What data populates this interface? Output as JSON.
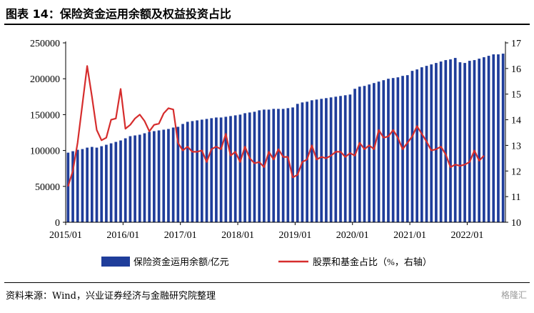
{
  "title": "图表 14：保险资金运用余额及权益投资占比",
  "source": "资料来源：Wind，兴业证券经济与金融研究院整理",
  "watermark": "格隆汇",
  "colors": {
    "bar": "#1f3d9a",
    "line": "#d62d2d"
  },
  "chart_data": {
    "type": "bar",
    "x_tick_labels": [
      "2015/01",
      "2016/01",
      "2017/01",
      "2018/01",
      "2019/01",
      "2020/01",
      "2021/01",
      "2022/01"
    ],
    "y_left": {
      "ticks": [
        0,
        50000,
        100000,
        150000,
        200000,
        250000
      ],
      "tick_labels": [
        "0",
        "50000",
        "100000",
        "150000",
        "200000",
        "250000"
      ],
      "range": [
        0,
        250000
      ]
    },
    "y_right": {
      "ticks": [
        10,
        11,
        12,
        13,
        14,
        15,
        16,
        17
      ],
      "tick_labels": [
        "10",
        "11",
        "12",
        "13",
        "14",
        "15",
        "16",
        "17"
      ],
      "range": [
        10,
        17
      ]
    },
    "legend_position": "bottom",
    "series": [
      {
        "name": "保险资金运用余额/亿元",
        "type": "bar",
        "axis": "left",
        "x_start": "2015/01",
        "frequency": "monthly",
        "values": [
          97000,
          99000,
          101000,
          102000,
          104000,
          105000,
          104000,
          106000,
          108000,
          110000,
          112000,
          114000,
          117000,
          120000,
          121000,
          122000,
          124000,
          126000,
          127000,
          128000,
          129000,
          130000,
          132000,
          133000,
          137000,
          140000,
          141000,
          142000,
          143000,
          144000,
          145000,
          146000,
          146000,
          147000,
          148000,
          149000,
          150000,
          152000,
          153000,
          154000,
          156000,
          157000,
          157000,
          158000,
          158000,
          158000,
          159000,
          160000,
          165000,
          167000,
          168000,
          170000,
          171000,
          172000,
          173000,
          174000,
          175000,
          176000,
          177000,
          178000,
          186000,
          189000,
          190000,
          192000,
          194000,
          196000,
          198000,
          200000,
          201000,
          202000,
          204000,
          205000,
          211000,
          213000,
          216000,
          218000,
          220000,
          222000,
          224000,
          226000,
          227000,
          229000,
          223000,
          222000,
          225000,
          226000,
          228000,
          230000,
          232000,
          234000,
          234000,
          235000
        ]
      },
      {
        "name": "股票和基金占比（%，右轴）",
        "type": "line",
        "axis": "right",
        "x_start": "2015/01",
        "frequency": "monthly",
        "values": [
          11.4,
          12.0,
          13.1,
          14.6,
          16.1,
          14.9,
          13.6,
          13.2,
          13.3,
          14.0,
          14.05,
          15.2,
          13.65,
          13.8,
          14.05,
          14.2,
          13.95,
          13.55,
          13.8,
          13.85,
          14.25,
          14.45,
          14.4,
          13.1,
          12.8,
          12.95,
          12.75,
          12.75,
          12.8,
          12.35,
          12.85,
          12.95,
          12.85,
          13.45,
          12.6,
          12.75,
          12.35,
          12.95,
          12.5,
          12.3,
          12.35,
          12.15,
          12.75,
          12.45,
          12.85,
          12.55,
          12.55,
          11.75,
          11.85,
          12.35,
          12.45,
          13.0,
          12.45,
          12.55,
          12.5,
          12.6,
          12.75,
          12.75,
          12.55,
          12.7,
          12.6,
          13.1,
          12.85,
          13.0,
          12.85,
          13.6,
          13.3,
          13.35,
          13.6,
          13.3,
          12.85,
          13.1,
          13.35,
          13.75,
          13.45,
          13.15,
          12.8,
          12.85,
          12.95,
          12.65,
          12.15,
          12.25,
          12.2,
          12.25,
          12.35,
          12.8,
          12.4,
          12.6
        ]
      }
    ]
  }
}
